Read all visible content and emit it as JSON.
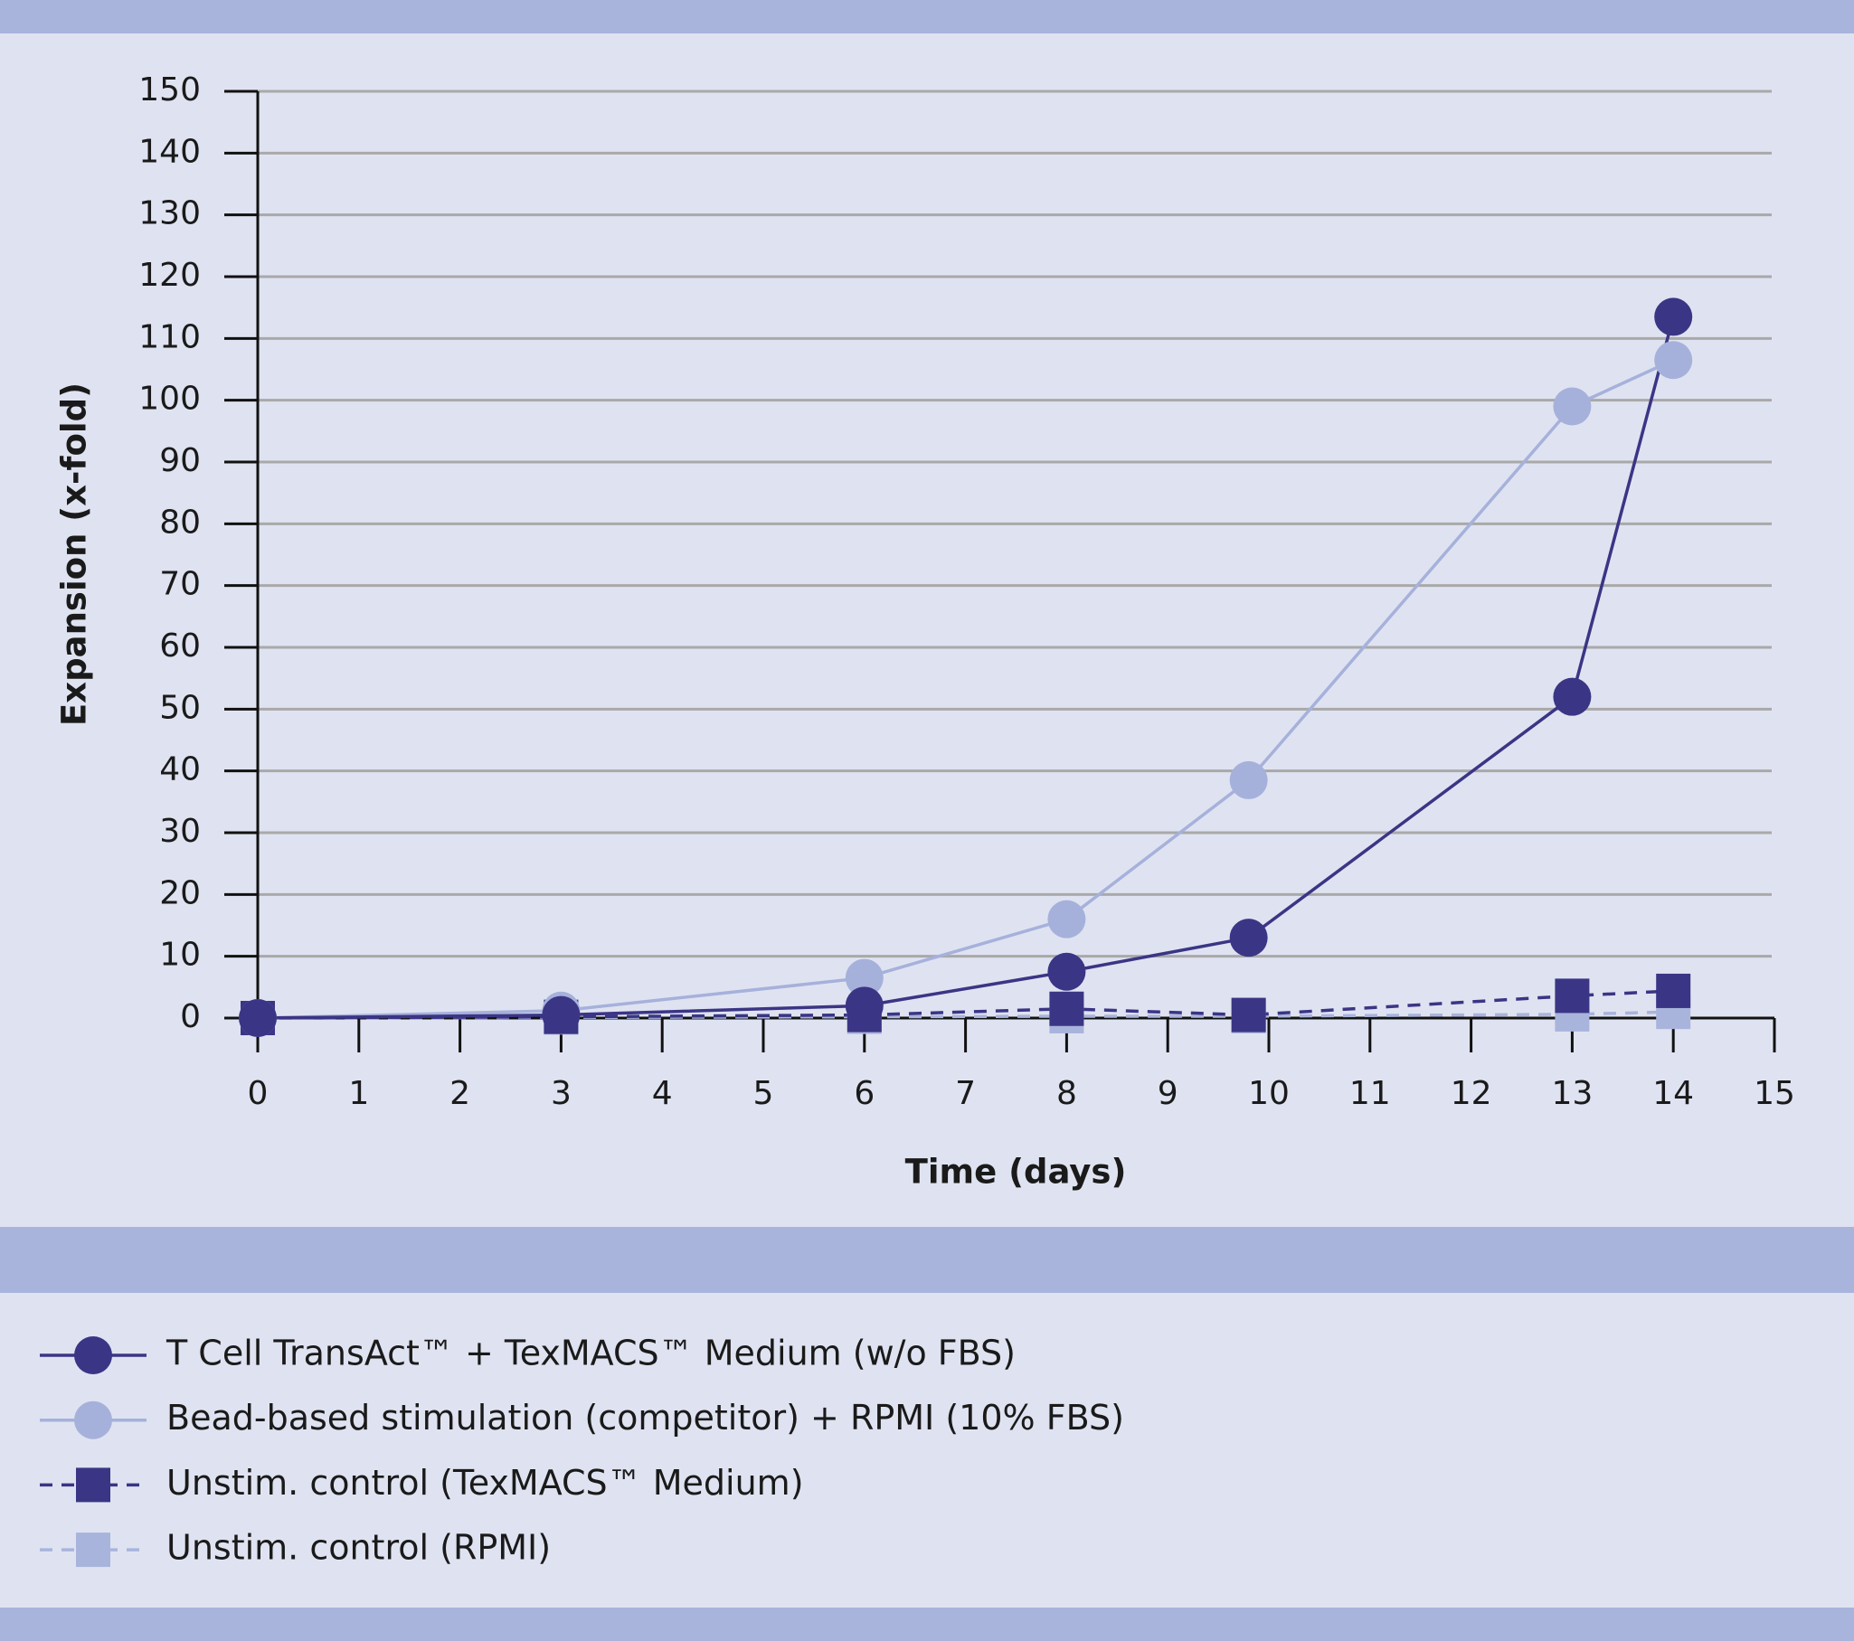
{
  "chart_data": {
    "type": "line",
    "x_label": "Time (days)",
    "y_label": "Expansion (x-fold)",
    "x": [
      0,
      3,
      6,
      8,
      9.8,
      13,
      14
    ],
    "xlim": [
      0,
      15
    ],
    "xticks": [
      0,
      1,
      2,
      3,
      4,
      5,
      6,
      7,
      8,
      9,
      10,
      11,
      12,
      13,
      14,
      15
    ],
    "ylim": [
      0,
      150
    ],
    "yticks": [
      0,
      10,
      20,
      30,
      40,
      50,
      60,
      70,
      80,
      90,
      100,
      110,
      120,
      130,
      140,
      150
    ],
    "grid": true,
    "series": [
      {
        "name": "T Cell TransAct™ + TexMACS™ Medium (w/o FBS)",
        "color": "#3b3585",
        "marker": "circle",
        "dashed": false,
        "values": [
          0,
          0.5,
          2,
          7.5,
          13,
          52,
          113.5
        ]
      },
      {
        "name": "Bead-based stimulation (competitor) + RPMI (10% FBS)",
        "color": "#a6b1db",
        "marker": "circle",
        "dashed": false,
        "values": [
          0,
          1.2,
          6.5,
          16,
          38.5,
          99,
          106.5
        ]
      },
      {
        "name": "Unstim. control (TexMACS™ Medium)",
        "color": "#3b3585",
        "marker": "square",
        "dashed": true,
        "values": [
          0,
          0.2,
          0.5,
          1.5,
          0.5,
          3.6,
          4.4
        ]
      },
      {
        "name": "Unstim. control (RPMI)",
        "color": "#a9b4dc",
        "marker": "square",
        "dashed": true,
        "values": [
          0,
          0.1,
          0.2,
          0.3,
          0.3,
          0.6,
          1
        ]
      }
    ]
  }
}
